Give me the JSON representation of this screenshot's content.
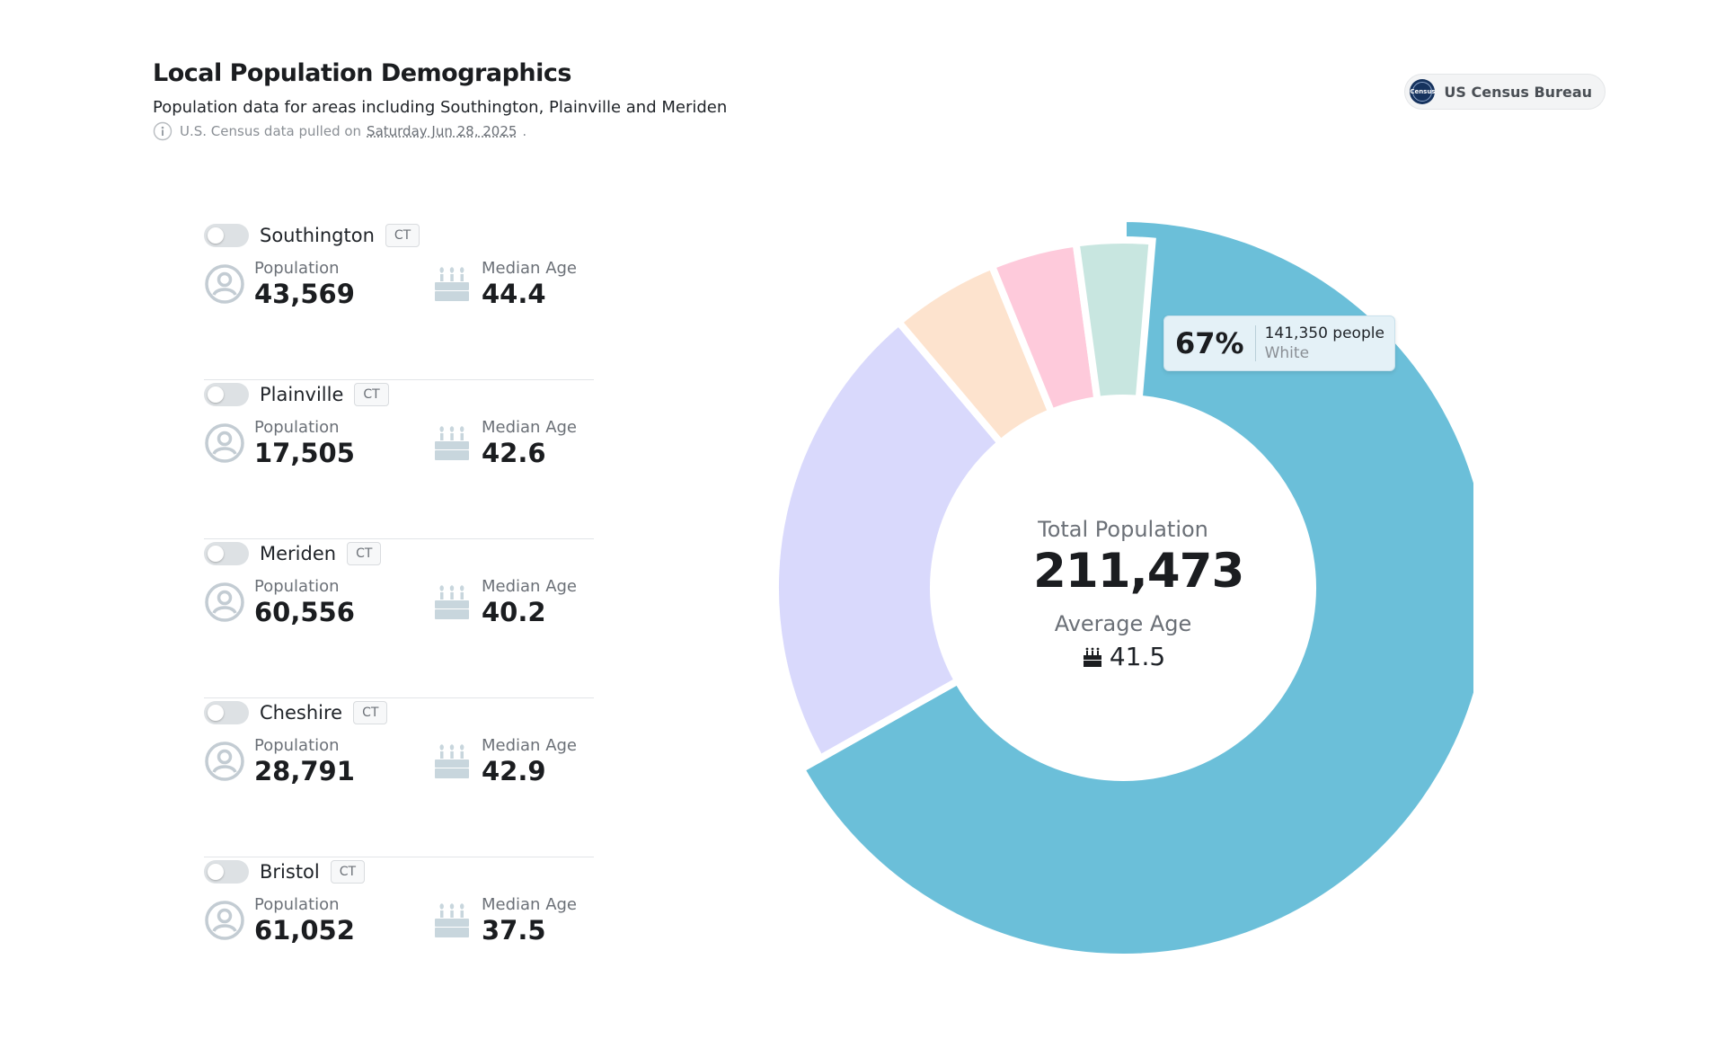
{
  "header": {
    "title": "Local Population Demographics",
    "subtitle": "Population data for areas including Southington, Plainville and Meriden",
    "meta_prefix": "U.S. Census data pulled on",
    "meta_date": "Saturday Jun 28, 2025",
    "meta_suffix": "."
  },
  "source": {
    "label": "US Census Bureau",
    "seal_text": "Census"
  },
  "labels": {
    "population": "Population",
    "median_age": "Median Age"
  },
  "places": [
    {
      "name": "Southington",
      "state": "CT",
      "population": "43,569",
      "median_age": "44.4"
    },
    {
      "name": "Plainville",
      "state": "CT",
      "population": "17,505",
      "median_age": "42.6"
    },
    {
      "name": "Meriden",
      "state": "CT",
      "population": "60,556",
      "median_age": "40.2"
    },
    {
      "name": "Cheshire",
      "state": "CT",
      "population": "28,791",
      "median_age": "42.9"
    },
    {
      "name": "Bristol",
      "state": "CT",
      "population": "61,052",
      "median_age": "37.5"
    }
  ],
  "summary": {
    "total_label": "Total Population",
    "total_value": "211,473",
    "avg_label": "Average Age",
    "avg_value": "41.5"
  },
  "tooltip": {
    "percent": "67%",
    "people": "141,350 people",
    "category": "White"
  },
  "chart_data": {
    "type": "pie",
    "style": "donut",
    "title": "Total Population",
    "total": 211473,
    "slices": [
      {
        "label": "White",
        "value": 141350,
        "color": "#6bbfd9"
      },
      {
        "label": "",
        "value": 0.22,
        "color": "#d9d9fc"
      },
      {
        "label": "",
        "value": 0.05,
        "color": "#fde3ce"
      },
      {
        "label": "",
        "value": 0.04,
        "color": "#fecadb"
      },
      {
        "label": "",
        "value": 0.035,
        "color": "#c8e6e0"
      }
    ],
    "highlighted": "White"
  }
}
